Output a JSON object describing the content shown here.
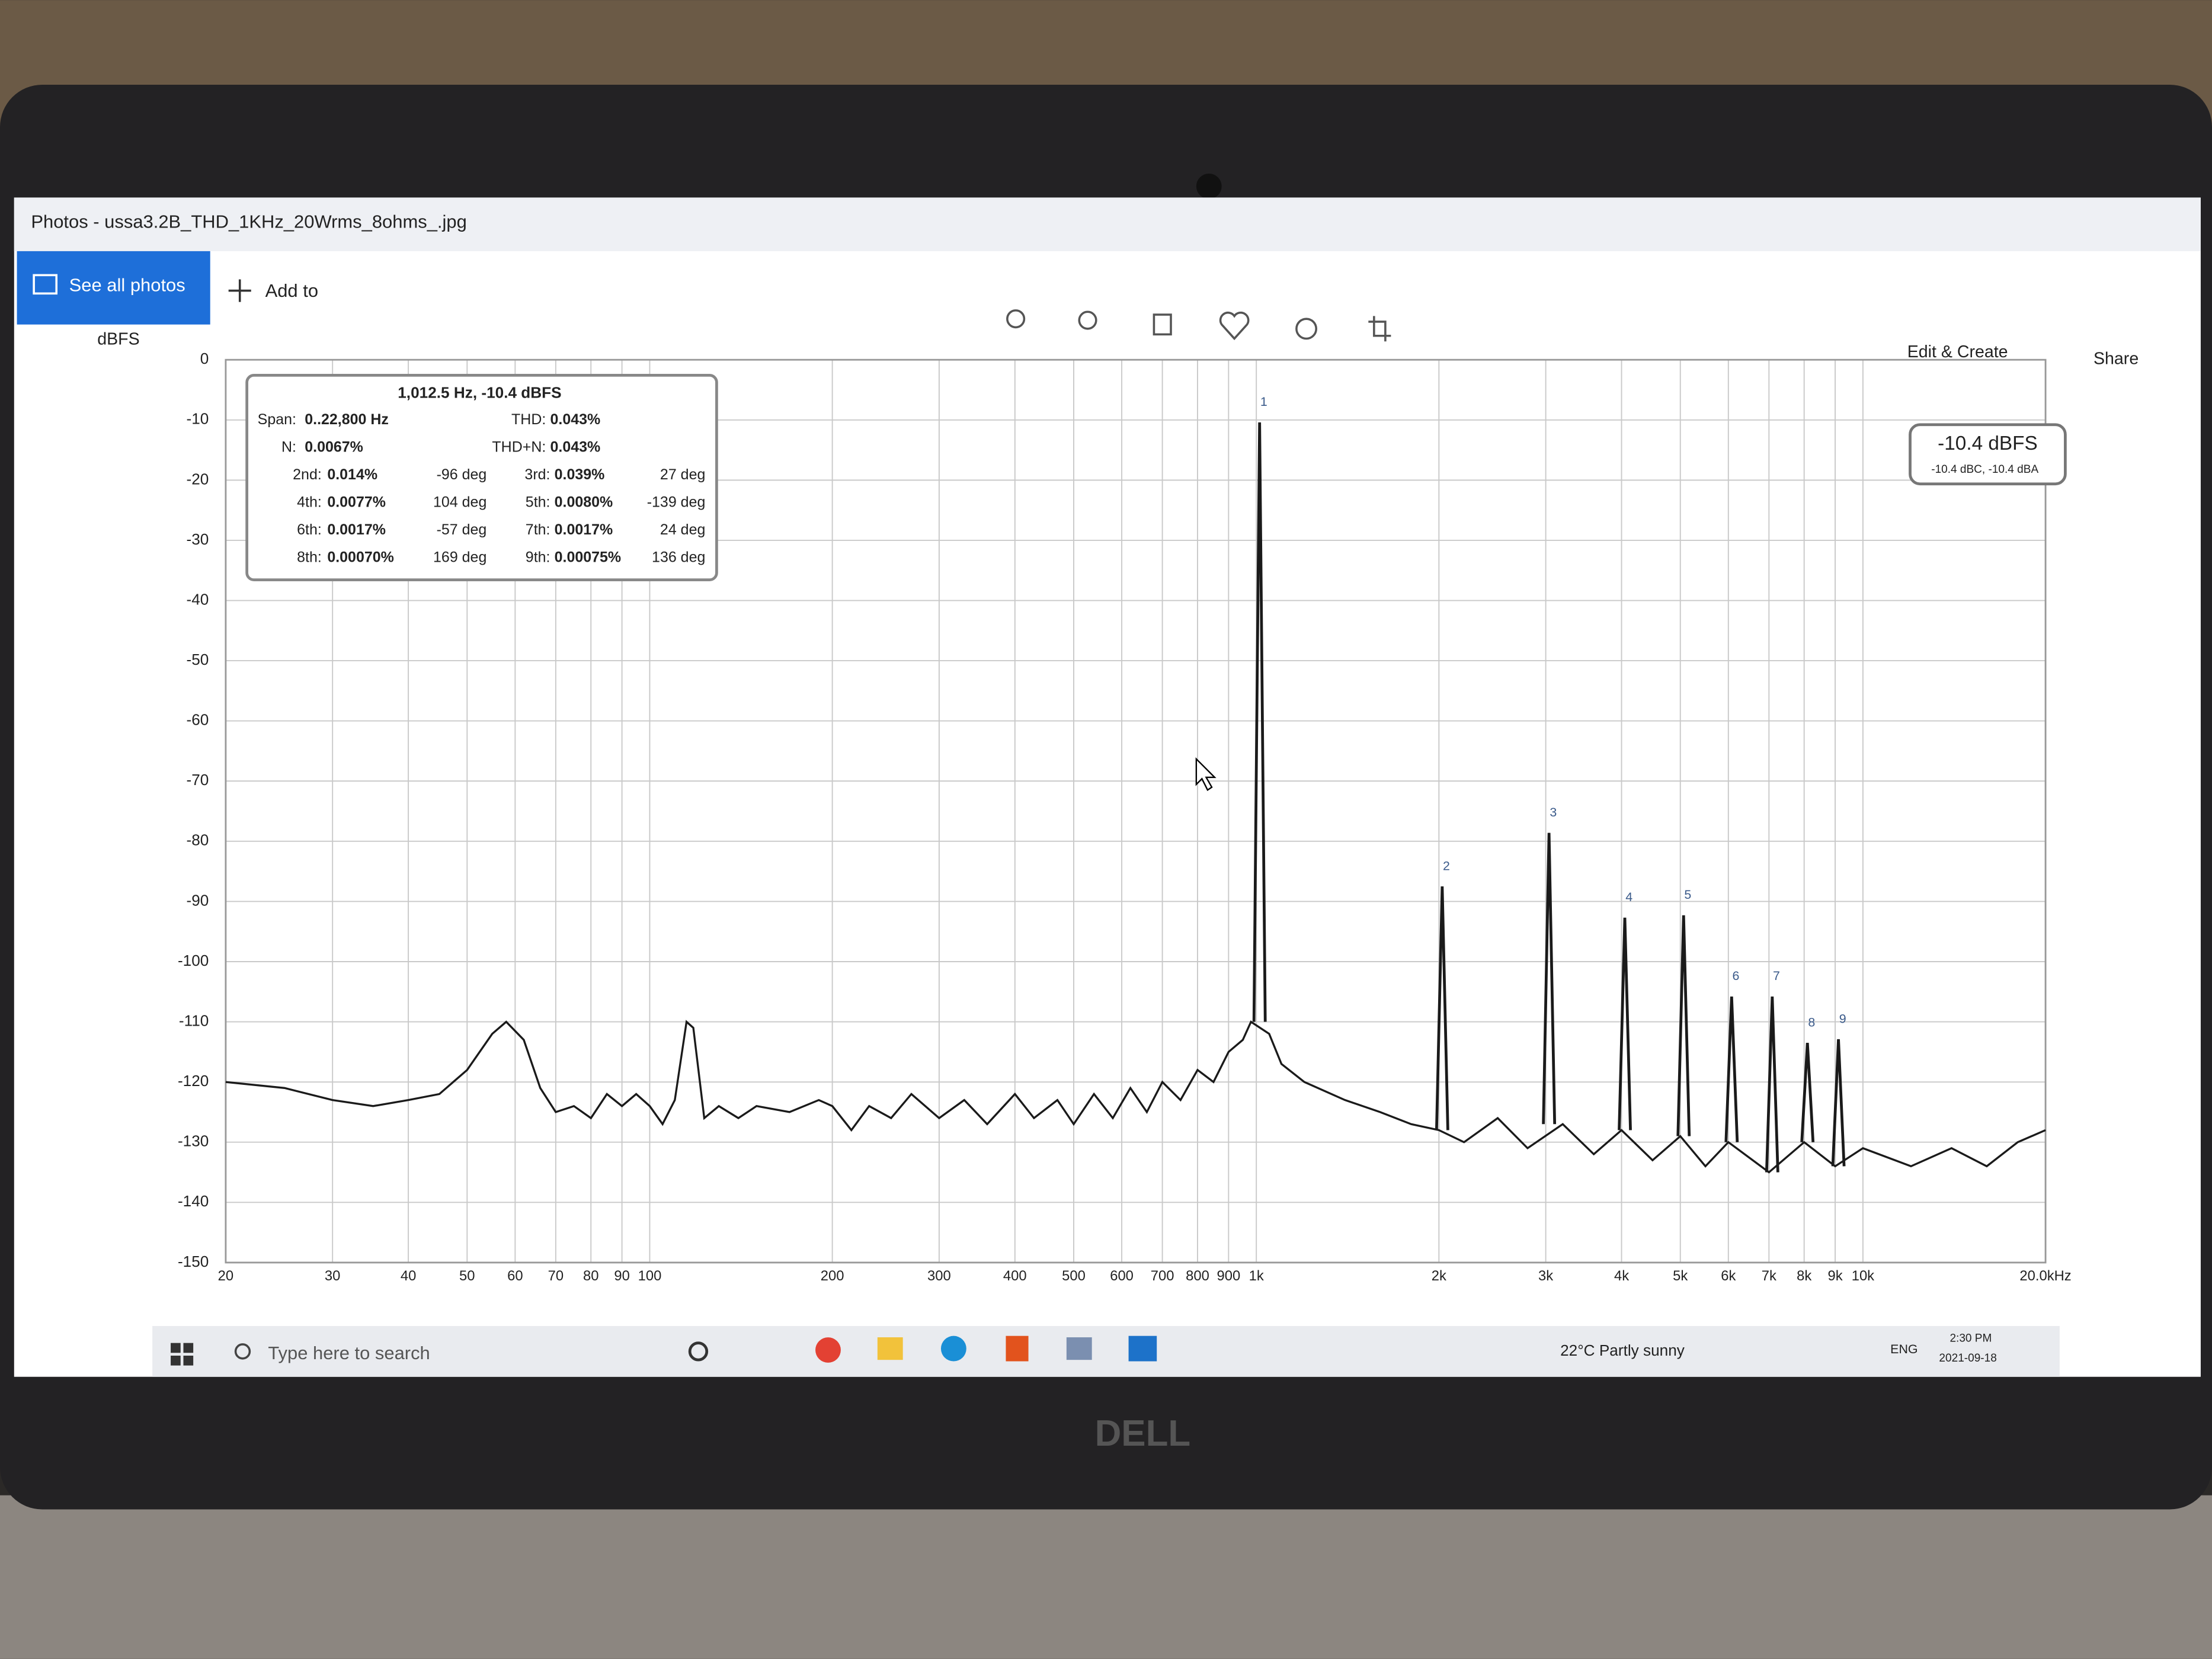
{
  "window": {
    "title": "Photos - ussa3.2B_THD_1KHz_20Wrms_8ohms_.jpg",
    "see_all": "See all photos",
    "add_to": "Add to",
    "edit_create": "Edit & Create",
    "share": "Share"
  },
  "chart_data": {
    "type": "line",
    "ylabel": "dBFS",
    "log_x": true,
    "grid": true,
    "color": "#1a1a1a",
    "xlim": [
      20,
      20000
    ],
    "ylim": [
      -150,
      0
    ],
    "yticks": [
      0,
      -10,
      -20,
      -30,
      -40,
      -50,
      -60,
      -70,
      -80,
      -90,
      -100,
      -110,
      -120,
      -130,
      -140,
      -150
    ],
    "xticks": [
      20,
      30,
      40,
      50,
      60,
      70,
      80,
      90,
      100,
      200,
      300,
      400,
      500,
      600,
      700,
      800,
      900,
      {
        "value": 1000,
        "label": "1k"
      },
      {
        "value": 2000,
        "label": "2k"
      },
      {
        "value": 3000,
        "label": "3k"
      },
      {
        "value": 4000,
        "label": "4k"
      },
      {
        "value": 5000,
        "label": "5k"
      },
      {
        "value": 6000,
        "label": "6k"
      },
      {
        "value": 7000,
        "label": "7k"
      },
      {
        "value": 8000,
        "label": "8k"
      },
      {
        "value": 9000,
        "label": "9k"
      },
      {
        "value": 10000,
        "label": "10k"
      },
      {
        "value": 20000,
        "label": "20.0kHz"
      }
    ],
    "x": [
      20,
      25,
      30,
      35,
      40,
      45,
      50,
      55,
      58,
      62,
      66,
      70,
      75,
      80,
      85,
      90,
      95,
      100,
      105,
      110,
      115,
      118,
      123,
      130,
      140,
      150,
      170,
      190,
      200,
      215,
      230,
      250,
      270,
      300,
      330,
      360,
      400,
      430,
      470,
      500,
      540,
      580,
      620,
      660,
      700,
      750,
      800,
      850,
      900,
      950,
      980,
      1050,
      1100,
      1200,
      1400,
      1600,
      1800,
      2000,
      2200,
      2500,
      2800,
      3200,
      3600,
      4000,
      4500,
      5000,
      5500,
      6000,
      7000,
      8000,
      9000,
      10000,
      12000,
      14000,
      16000,
      18000,
      20000
    ],
    "values": [
      -120,
      -121,
      -123,
      -124,
      -123,
      -122,
      -118,
      -112,
      -110,
      -113,
      -121,
      -125,
      -124,
      -126,
      -122,
      -124,
      -122,
      -124,
      -127,
      -123,
      -110,
      -111,
      -126,
      -124,
      -126,
      -124,
      -125,
      -123,
      -124,
      -128,
      -124,
      -126,
      -122,
      -126,
      -123,
      -127,
      -122,
      -126,
      -123,
      -127,
      -122,
      -126,
      -121,
      -125,
      -120,
      -123,
      -118,
      -120,
      -115,
      -113,
      -110,
      -112,
      -117,
      -120,
      -123,
      -125,
      -127,
      -128,
      -130,
      -126,
      -131,
      -127,
      -132,
      -128,
      -133,
      -129,
      -134,
      -130,
      -135,
      -130,
      -134,
      -131,
      -134,
      -131,
      -134,
      -130,
      -128
    ],
    "peaks": {
      "x": [
        1012.5,
        2025,
        3037.5,
        4050,
        5062.5,
        6075,
        7087.5,
        8100,
        9112.5
      ],
      "values": [
        -10.4,
        -87.5,
        -78.6,
        -92.7,
        -92.3,
        -105.8,
        -105.8,
        -113.5,
        -112.9
      ],
      "labels": [
        "1",
        "2",
        "3",
        "4",
        "5",
        "6",
        "7",
        "8",
        "9"
      ]
    },
    "readout": {
      "header": "1,012.5 Hz, -10.4 dBFS",
      "rows": [
        [
          "Span:",
          "0..22,800 Hz",
          "THD:",
          "0.043%"
        ],
        [
          "N:",
          "0.0067%",
          "THD+N:",
          "0.043%"
        ],
        [
          "2nd:",
          "0.014%",
          "-96 deg",
          "3rd:",
          "0.039%",
          "27 deg"
        ],
        [
          "4th:",
          "0.0077%",
          "104 deg",
          "5th:",
          "0.0080%",
          "-139 deg"
        ],
        [
          "6th:",
          "0.0017%",
          "-57 deg",
          "7th:",
          "0.0017%",
          "24 deg"
        ],
        [
          "8th:",
          "0.00070%",
          "169 deg",
          "9th:",
          "0.00075%",
          "136 deg"
        ]
      ]
    },
    "level": {
      "main": "-10.4 dBFS",
      "sub": "-10.4 dBC, -10.4 dBA"
    }
  },
  "taskbar": {
    "search": "Type here to search",
    "weather": "22°C  Partly sunny",
    "lang": "ENG",
    "time": "2:30 PM",
    "date": "2021-09-18"
  },
  "brand": "DELL"
}
